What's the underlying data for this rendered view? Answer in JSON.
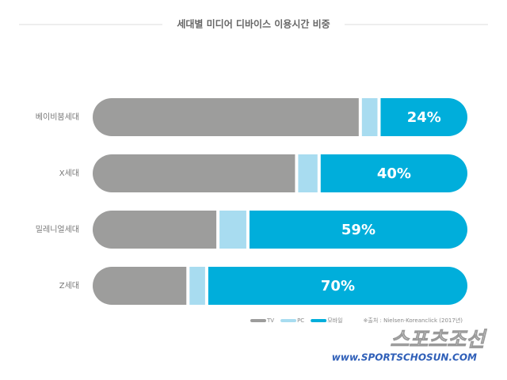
{
  "chart_data": {
    "type": "stacked-barh",
    "title": "세대별 미디어 디바이스 이용시간 비중",
    "categories": [
      "베이비붐세대",
      "X세대",
      "밀레니얼세대",
      "Z세대"
    ],
    "series": [
      {
        "name": "TV",
        "color": "#9d9d9c",
        "values": [
          71,
          54,
          33,
          25
        ]
      },
      {
        "name": "PC",
        "color": "#a8dcf0",
        "values": [
          5,
          6,
          8,
          5
        ]
      },
      {
        "name": "모바일",
        "color": "#00aedb",
        "values": [
          24,
          40,
          59,
          70
        ],
        "value_labels": [
          "24%",
          "40%",
          "59%",
          "70%"
        ]
      }
    ],
    "xlim": [
      0,
      100
    ],
    "source": "※출처 : Nielsen·Koreanclick (2017년)"
  },
  "watermark": {
    "name": "스포츠조선",
    "url": "www.SPORTSCHOSUN.COM"
  }
}
